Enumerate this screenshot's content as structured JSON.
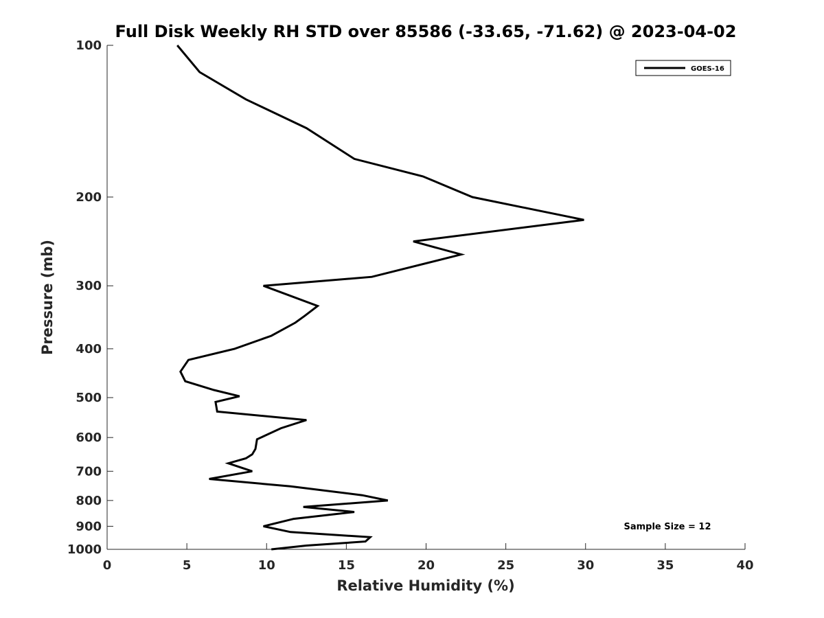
{
  "chart_data": {
    "type": "line",
    "title": "Full Disk Weekly RH STD over 85586 (-33.65, -71.62) @ 2023-04-02",
    "xlabel": "Relative Humidity (%)",
    "ylabel": "Pressure (mb)",
    "xlim": [
      0,
      40
    ],
    "ylim": [
      1000,
      100
    ],
    "yscale": "log",
    "yreversed": true,
    "grid": false,
    "legend_position": "top-right",
    "x_ticks": [
      "0",
      "5",
      "10",
      "15",
      "20",
      "25",
      "30",
      "35",
      "40"
    ],
    "y_ticks": [
      "100",
      "200",
      "300",
      "400",
      "500",
      "600",
      "700",
      "800",
      "900",
      "1000"
    ],
    "series": [
      {
        "name": "GOES-16",
        "color": "#000000",
        "x": [
          4.4,
          5.8,
          8.7,
          12.5,
          15.5,
          19.8,
          22.9,
          29.9,
          19.2,
          22.2,
          16.6,
          9.8,
          13.2,
          12.4,
          11.8,
          10.3,
          8.0,
          5.1,
          4.6,
          4.9,
          6.7,
          8.3,
          6.8,
          6.9,
          12.5,
          10.9,
          9.4,
          9.3,
          9.1,
          8.7,
          7.6,
          9.1,
          6.4,
          11.5,
          16.0,
          17.6,
          12.3,
          15.5,
          11.7,
          9.8,
          11.5,
          16.5,
          16.2,
          12.5,
          10.3
        ],
        "y": [
          100,
          113,
          128,
          146,
          168,
          182,
          200,
          222,
          245,
          260,
          288,
          300,
          329,
          344,
          355,
          377,
          400,
          421,
          444,
          464,
          483,
          497,
          510,
          533,
          554,
          575,
          605,
          632,
          648,
          660,
          675,
          700,
          725,
          750,
          781,
          800,
          824,
          843,
          870,
          900,
          924,
          946,
          965,
          983,
          1000
        ]
      }
    ],
    "annotations": [
      "Sample Size = 12"
    ]
  }
}
